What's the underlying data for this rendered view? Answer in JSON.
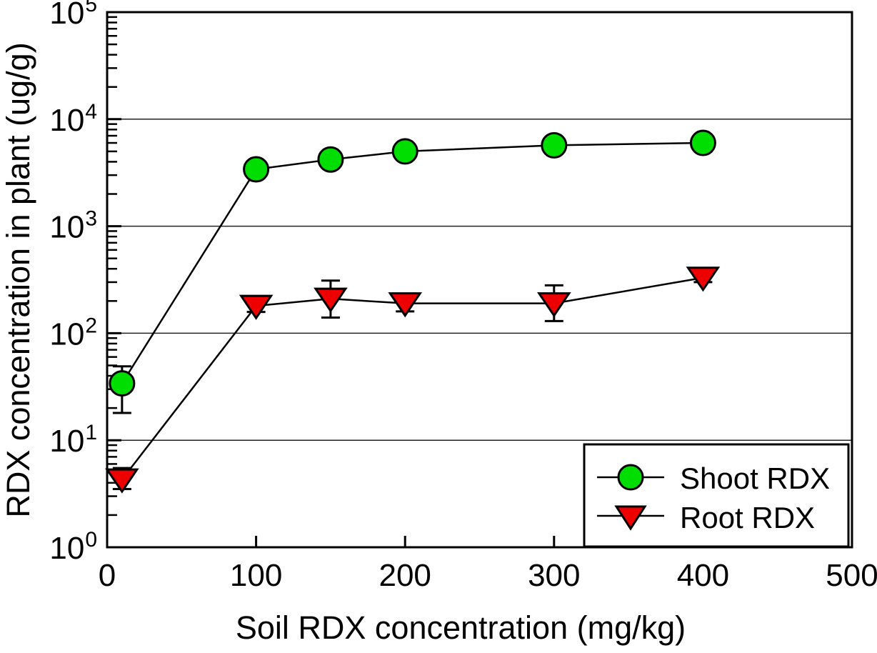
{
  "chart_data": {
    "type": "line",
    "title": "",
    "xlabel": "Soil RDX concentration (mg/kg)",
    "ylabel": "RDX concentration in plant (ug/g)",
    "xlim": [
      0,
      500
    ],
    "x_ticks": [
      0,
      100,
      200,
      300,
      400,
      500
    ],
    "y_scale": "log",
    "y_exp_range": [
      0,
      5
    ],
    "y_tick_base": "10",
    "y_tick_exponents": [
      0,
      1,
      2,
      3,
      4,
      5
    ],
    "grid": "horizontal-decade-lines",
    "legend_position": "bottom-right",
    "axis_color": "#000000",
    "grid_color": "#222222",
    "background_color": "#ffffff",
    "series": [
      {
        "name": "Shoot RDX",
        "marker": "circle",
        "color": "#00DD00",
        "line_color": "#000000",
        "x": [
          10,
          100,
          150,
          200,
          300,
          400
        ],
        "y": [
          34,
          3400,
          4200,
          5000,
          5700,
          6000
        ],
        "y_err_low": [
          18,
          3400,
          4200,
          5000,
          5700,
          6000
        ],
        "y_err_high": [
          49,
          3400,
          4200,
          5000,
          5700,
          6000
        ]
      },
      {
        "name": "Root RDX",
        "marker": "triangle-down",
        "color": "#EE0000",
        "line_color": "#000000",
        "x": [
          10,
          100,
          150,
          200,
          300,
          400
        ],
        "y": [
          4.3,
          180,
          210,
          190,
          190,
          330
        ],
        "y_err_low": [
          3.5,
          158,
          140,
          160,
          130,
          300
        ],
        "y_err_high": [
          5.5,
          200,
          310,
          220,
          280,
          360
        ]
      }
    ]
  }
}
